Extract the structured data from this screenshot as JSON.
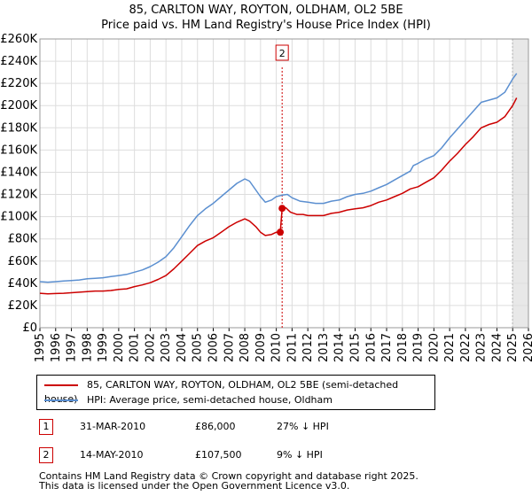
{
  "title_line1": "85, CARLTON WAY, ROYTON, OLDHAM, OL2 5BE",
  "title_line2": "Price paid vs. HM Land Registry's House Price Index (HPI)",
  "chart_data": {
    "type": "line",
    "title": "85, CARLTON WAY, ROYTON, OLDHAM, OL2 5BE — Price paid vs. HM Land Registry's House Price Index (HPI)",
    "xlabel": "",
    "ylabel": "",
    "xlim": [
      1995,
      2026
    ],
    "ylim": [
      0,
      260000
    ],
    "grid": true,
    "x_ticks": [
      1995,
      1996,
      1997,
      1998,
      1999,
      2000,
      2001,
      2002,
      2003,
      2004,
      2005,
      2006,
      2007,
      2008,
      2009,
      2010,
      2011,
      2012,
      2013,
      2014,
      2015,
      2016,
      2017,
      2018,
      2019,
      2020,
      2021,
      2022,
      2023,
      2024,
      2025,
      2026
    ],
    "y_ticks": [
      {
        "value": 0,
        "label": "£0"
      },
      {
        "value": 20000,
        "label": "£20K"
      },
      {
        "value": 40000,
        "label": "£40K"
      },
      {
        "value": 60000,
        "label": "£60K"
      },
      {
        "value": 80000,
        "label": "£80K"
      },
      {
        "value": 100000,
        "label": "£100K"
      },
      {
        "value": 120000,
        "label": "£120K"
      },
      {
        "value": 140000,
        "label": "£140K"
      },
      {
        "value": 160000,
        "label": "£160K"
      },
      {
        "value": 180000,
        "label": "£180K"
      },
      {
        "value": 200000,
        "label": "£200K"
      },
      {
        "value": 220000,
        "label": "£220K"
      },
      {
        "value": 240000,
        "label": "£240K"
      },
      {
        "value": 260000,
        "label": "£260K"
      }
    ],
    "series": [
      {
        "name": "85, CARLTON WAY, ROYTON, OLDHAM, OL2 5BE (semi-detached house)",
        "color": "#cc0000",
        "points": [
          [
            1995.0,
            31000
          ],
          [
            1995.5,
            30500
          ],
          [
            1996.0,
            30800
          ],
          [
            1996.5,
            31000
          ],
          [
            1997.0,
            31500
          ],
          [
            1997.5,
            32000
          ],
          [
            1998.0,
            32500
          ],
          [
            1998.5,
            33000
          ],
          [
            1999.0,
            33000
          ],
          [
            1999.5,
            33500
          ],
          [
            2000.0,
            34500
          ],
          [
            2000.5,
            35000
          ],
          [
            2001.0,
            37000
          ],
          [
            2001.5,
            38500
          ],
          [
            2002.0,
            40500
          ],
          [
            2002.5,
            43500
          ],
          [
            2003.0,
            47000
          ],
          [
            2003.5,
            53000
          ],
          [
            2004.0,
            60000
          ],
          [
            2004.5,
            67000
          ],
          [
            2005.0,
            74000
          ],
          [
            2005.5,
            78000
          ],
          [
            2006.0,
            81000
          ],
          [
            2006.5,
            86000
          ],
          [
            2007.0,
            91000
          ],
          [
            2007.5,
            95000
          ],
          [
            2008.0,
            98000
          ],
          [
            2008.3,
            96000
          ],
          [
            2008.7,
            91000
          ],
          [
            2009.0,
            86000
          ],
          [
            2009.3,
            83000
          ],
          [
            2009.7,
            84000
          ],
          [
            2010.0,
            86000
          ],
          [
            2010.25,
            86000
          ],
          [
            2010.37,
            107500
          ],
          [
            2010.6,
            108000
          ],
          [
            2010.9,
            104000
          ],
          [
            2011.3,
            102000
          ],
          [
            2011.7,
            102000
          ],
          [
            2012.0,
            101000
          ],
          [
            2012.5,
            101000
          ],
          [
            2013.0,
            101000
          ],
          [
            2013.5,
            103000
          ],
          [
            2014.0,
            104000
          ],
          [
            2014.5,
            106000
          ],
          [
            2015.0,
            107000
          ],
          [
            2015.5,
            108000
          ],
          [
            2016.0,
            110000
          ],
          [
            2016.5,
            113000
          ],
          [
            2017.0,
            115000
          ],
          [
            2017.5,
            118000
          ],
          [
            2018.0,
            121000
          ],
          [
            2018.5,
            125000
          ],
          [
            2019.0,
            127000
          ],
          [
            2019.5,
            131000
          ],
          [
            2020.0,
            135000
          ],
          [
            2020.5,
            142000
          ],
          [
            2021.0,
            150000
          ],
          [
            2021.5,
            157000
          ],
          [
            2022.0,
            165000
          ],
          [
            2022.5,
            172000
          ],
          [
            2023.0,
            180000
          ],
          [
            2023.5,
            183000
          ],
          [
            2024.0,
            185000
          ],
          [
            2024.5,
            190000
          ],
          [
            2025.0,
            200000
          ],
          [
            2025.25,
            207000
          ]
        ]
      },
      {
        "name": "HPI: Average price, semi-detached house, Oldham",
        "color": "#5b8fd0",
        "points": [
          [
            1995.0,
            41500
          ],
          [
            1995.5,
            41000
          ],
          [
            1996.0,
            41500
          ],
          [
            1996.5,
            42000
          ],
          [
            1997.0,
            42500
          ],
          [
            1997.5,
            43000
          ],
          [
            1998.0,
            44000
          ],
          [
            1998.5,
            44500
          ],
          [
            1999.0,
            45000
          ],
          [
            1999.5,
            46000
          ],
          [
            2000.0,
            47000
          ],
          [
            2000.5,
            48000
          ],
          [
            2001.0,
            50000
          ],
          [
            2001.5,
            52000
          ],
          [
            2002.0,
            55000
          ],
          [
            2002.5,
            59000
          ],
          [
            2003.0,
            64000
          ],
          [
            2003.5,
            72000
          ],
          [
            2004.0,
            82000
          ],
          [
            2004.5,
            92000
          ],
          [
            2005.0,
            101000
          ],
          [
            2005.5,
            107000
          ],
          [
            2006.0,
            112000
          ],
          [
            2006.5,
            118000
          ],
          [
            2007.0,
            124000
          ],
          [
            2007.5,
            130000
          ],
          [
            2008.0,
            134000
          ],
          [
            2008.3,
            132000
          ],
          [
            2008.7,
            124000
          ],
          [
            2009.0,
            118000
          ],
          [
            2009.3,
            113000
          ],
          [
            2009.7,
            115000
          ],
          [
            2010.0,
            118000
          ],
          [
            2010.4,
            119500
          ],
          [
            2010.7,
            120000
          ],
          [
            2011.0,
            117000
          ],
          [
            2011.5,
            114000
          ],
          [
            2012.0,
            113000
          ],
          [
            2012.5,
            112000
          ],
          [
            2013.0,
            112000
          ],
          [
            2013.5,
            114000
          ],
          [
            2014.0,
            115000
          ],
          [
            2014.5,
            118000
          ],
          [
            2015.0,
            120000
          ],
          [
            2015.5,
            121000
          ],
          [
            2016.0,
            123000
          ],
          [
            2016.5,
            126000
          ],
          [
            2017.0,
            129000
          ],
          [
            2017.5,
            133000
          ],
          [
            2018.0,
            137000
          ],
          [
            2018.5,
            141000
          ],
          [
            2018.7,
            146000
          ],
          [
            2019.0,
            148000
          ],
          [
            2019.5,
            152000
          ],
          [
            2020.0,
            155000
          ],
          [
            2020.5,
            162000
          ],
          [
            2021.0,
            171000
          ],
          [
            2021.5,
            179000
          ],
          [
            2022.0,
            187000
          ],
          [
            2022.5,
            195000
          ],
          [
            2023.0,
            203000
          ],
          [
            2023.5,
            205000
          ],
          [
            2024.0,
            207000
          ],
          [
            2024.5,
            212000
          ],
          [
            2025.0,
            224000
          ],
          [
            2025.25,
            229000
          ]
        ]
      }
    ],
    "shaded_region": {
      "from": 2025.0,
      "to": 2026.0
    },
    "annotations": [
      {
        "id": "2",
        "x": 2010.37,
        "label": "2"
      }
    ],
    "sale_markers": [
      {
        "x": 2010.25,
        "y": 86000
      },
      {
        "x": 2010.37,
        "y": 107500
      }
    ]
  },
  "legend": {
    "items": [
      {
        "label": "85, CARLTON WAY, ROYTON, OLDHAM, OL2 5BE (semi-detached house)",
        "color": "#cc0000"
      },
      {
        "label": "HPI: Average price, semi-detached house, Oldham",
        "color": "#5b8fd0"
      }
    ]
  },
  "transactions": [
    {
      "num": "1",
      "date": "31-MAR-2010",
      "price": "£86,000",
      "hpi": "27% ↓ HPI"
    },
    {
      "num": "2",
      "date": "14-MAY-2010",
      "price": "£107,500",
      "hpi": "9% ↓ HPI"
    }
  ],
  "footer": {
    "line1": "Contains HM Land Registry data © Crown copyright and database right 2025.",
    "line2": "This data is licensed under the Open Government Licence v3.0."
  }
}
